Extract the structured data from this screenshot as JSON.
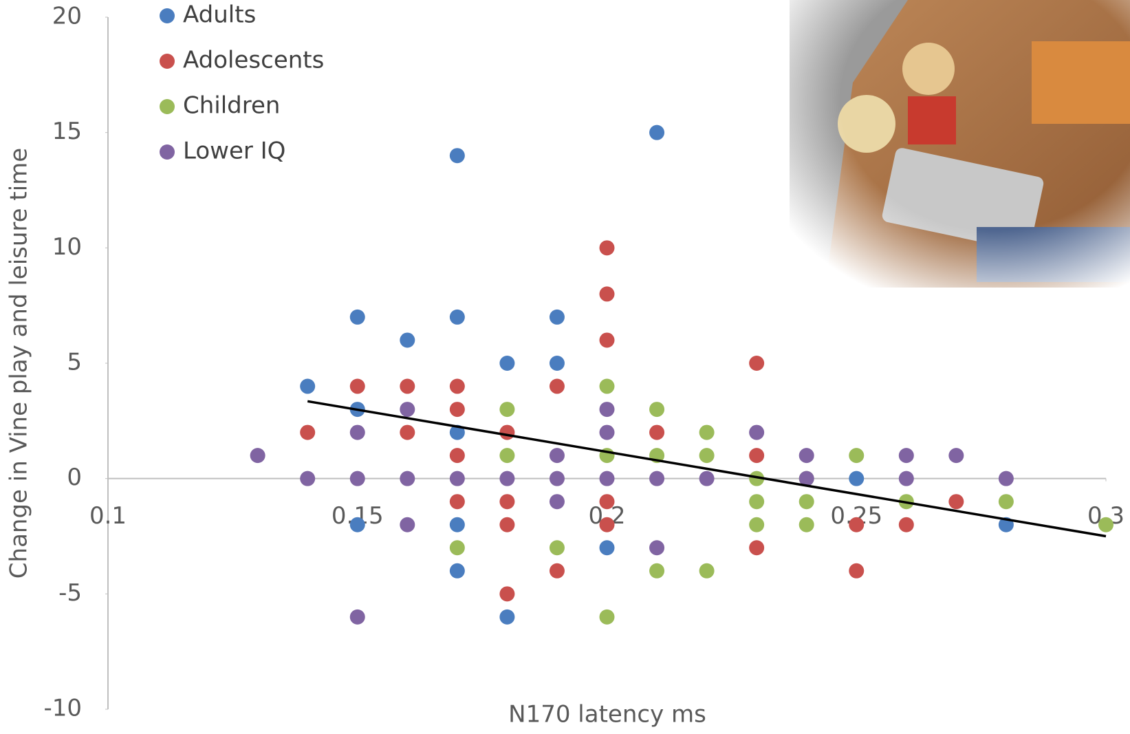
{
  "chart_data": {
    "type": "scatter",
    "x_label": "N170 latency ms",
    "y_label": "Change in Vine play and leisure time",
    "xlim": [
      0.1,
      0.3
    ],
    "xticks": [
      0.1,
      0.15,
      0.2,
      0.25,
      0.3
    ],
    "ylim": [
      -10,
      20
    ],
    "yticks": [
      -10,
      -5,
      0,
      5,
      10,
      15,
      20
    ],
    "legend": "top-left",
    "series": [
      {
        "name": "Adults",
        "color": "#4a7dbf",
        "x": [
          0.14,
          0.15,
          0.15,
          0.15,
          0.16,
          0.17,
          0.17,
          0.17,
          0.17,
          0.17,
          0.18,
          0.18,
          0.19,
          0.19,
          0.2,
          0.21,
          0.25,
          0.28
        ],
        "y": [
          4,
          7,
          3,
          -2,
          6,
          14,
          7,
          2,
          -2,
          -4,
          5,
          -6,
          7,
          5,
          -3,
          15,
          0,
          -2
        ]
      },
      {
        "name": "Adolescents",
        "color": "#c9504d",
        "x": [
          0.14,
          0.15,
          0.16,
          0.16,
          0.17,
          0.17,
          0.17,
          0.17,
          0.18,
          0.18,
          0.18,
          0.18,
          0.19,
          0.19,
          0.2,
          0.2,
          0.2,
          0.2,
          0.2,
          0.21,
          0.23,
          0.23,
          0.23,
          0.25,
          0.25,
          0.26,
          0.27
        ],
        "y": [
          2,
          4,
          4,
          2,
          4,
          3,
          1,
          -1,
          2,
          -1,
          -2,
          -5,
          4,
          -4,
          10,
          8,
          6,
          -1,
          -2,
          2,
          5,
          1,
          -3,
          -2,
          -4,
          -2,
          -1
        ]
      },
      {
        "name": "Children",
        "color": "#9bbb59",
        "x": [
          0.17,
          0.18,
          0.18,
          0.19,
          0.2,
          0.2,
          0.2,
          0.21,
          0.21,
          0.21,
          0.22,
          0.22,
          0.22,
          0.23,
          0.23,
          0.23,
          0.24,
          0.24,
          0.24,
          0.25,
          0.26,
          0.28,
          0.3
        ],
        "y": [
          -3,
          3,
          1,
          -3,
          4,
          1,
          -6,
          3,
          1,
          -4,
          2,
          1,
          -4,
          0,
          -1,
          -2,
          0,
          -1,
          -2,
          1,
          -1,
          -1,
          -2
        ]
      },
      {
        "name": "Lower IQ",
        "color": "#8064a2",
        "x": [
          0.13,
          0.14,
          0.15,
          0.15,
          0.15,
          0.16,
          0.16,
          0.16,
          0.17,
          0.18,
          0.19,
          0.19,
          0.19,
          0.2,
          0.2,
          0.2,
          0.21,
          0.21,
          0.22,
          0.23,
          0.24,
          0.24,
          0.26,
          0.26,
          0.27,
          0.28
        ],
        "y": [
          1,
          0,
          2,
          0,
          -6,
          3,
          0,
          -2,
          0,
          0,
          1,
          0,
          -1,
          3,
          2,
          0,
          0,
          -3,
          0,
          2,
          1,
          0,
          1,
          0,
          1,
          0
        ]
      }
    ],
    "trendline": {
      "color": "#000000",
      "x": [
        0.14,
        0.3
      ],
      "y": [
        3.35,
        -2.5
      ]
    }
  }
}
